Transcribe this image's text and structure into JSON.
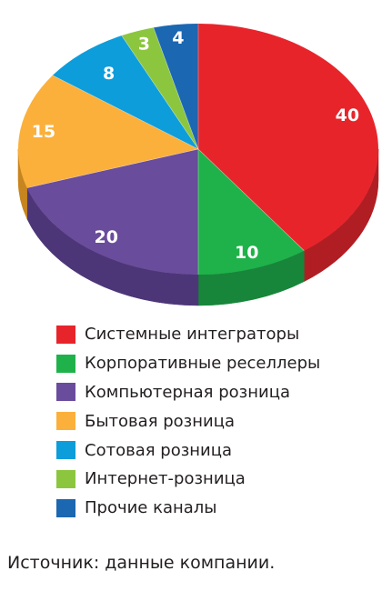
{
  "chart_data": {
    "type": "pie",
    "style": "3d",
    "series": [
      {
        "name": "Системные интеграторы",
        "value": 40,
        "label": "40",
        "color": "#e8242b",
        "side_color": "#b01e23"
      },
      {
        "name": "Корпоративные реселлеры",
        "value": 10,
        "label": "10",
        "color": "#1fb24a",
        "side_color": "#17863a"
      },
      {
        "name": "Компьютерная розница",
        "value": 20,
        "label": "20",
        "color": "#6a4c9c",
        "side_color": "#4d3677"
      },
      {
        "name": "Бытовая розница",
        "value": 15,
        "label": "15",
        "color": "#fbb03b",
        "side_color": "#c7851f"
      },
      {
        "name": "Сотовая розница",
        "value": 8,
        "label": "8",
        "color": "#0d9ddb",
        "side_color": "#0a76a8"
      },
      {
        "name": "Интернет-розница",
        "value": 3,
        "label": "3",
        "color": "#8cc63f",
        "side_color": "#699a2c"
      },
      {
        "name": "Прочие каналы",
        "value": 4,
        "label": "4",
        "color": "#1b67b1",
        "side_color": "#134c85"
      }
    ],
    "legend_position": "bottom"
  },
  "source_note": "Источник: данные компании."
}
